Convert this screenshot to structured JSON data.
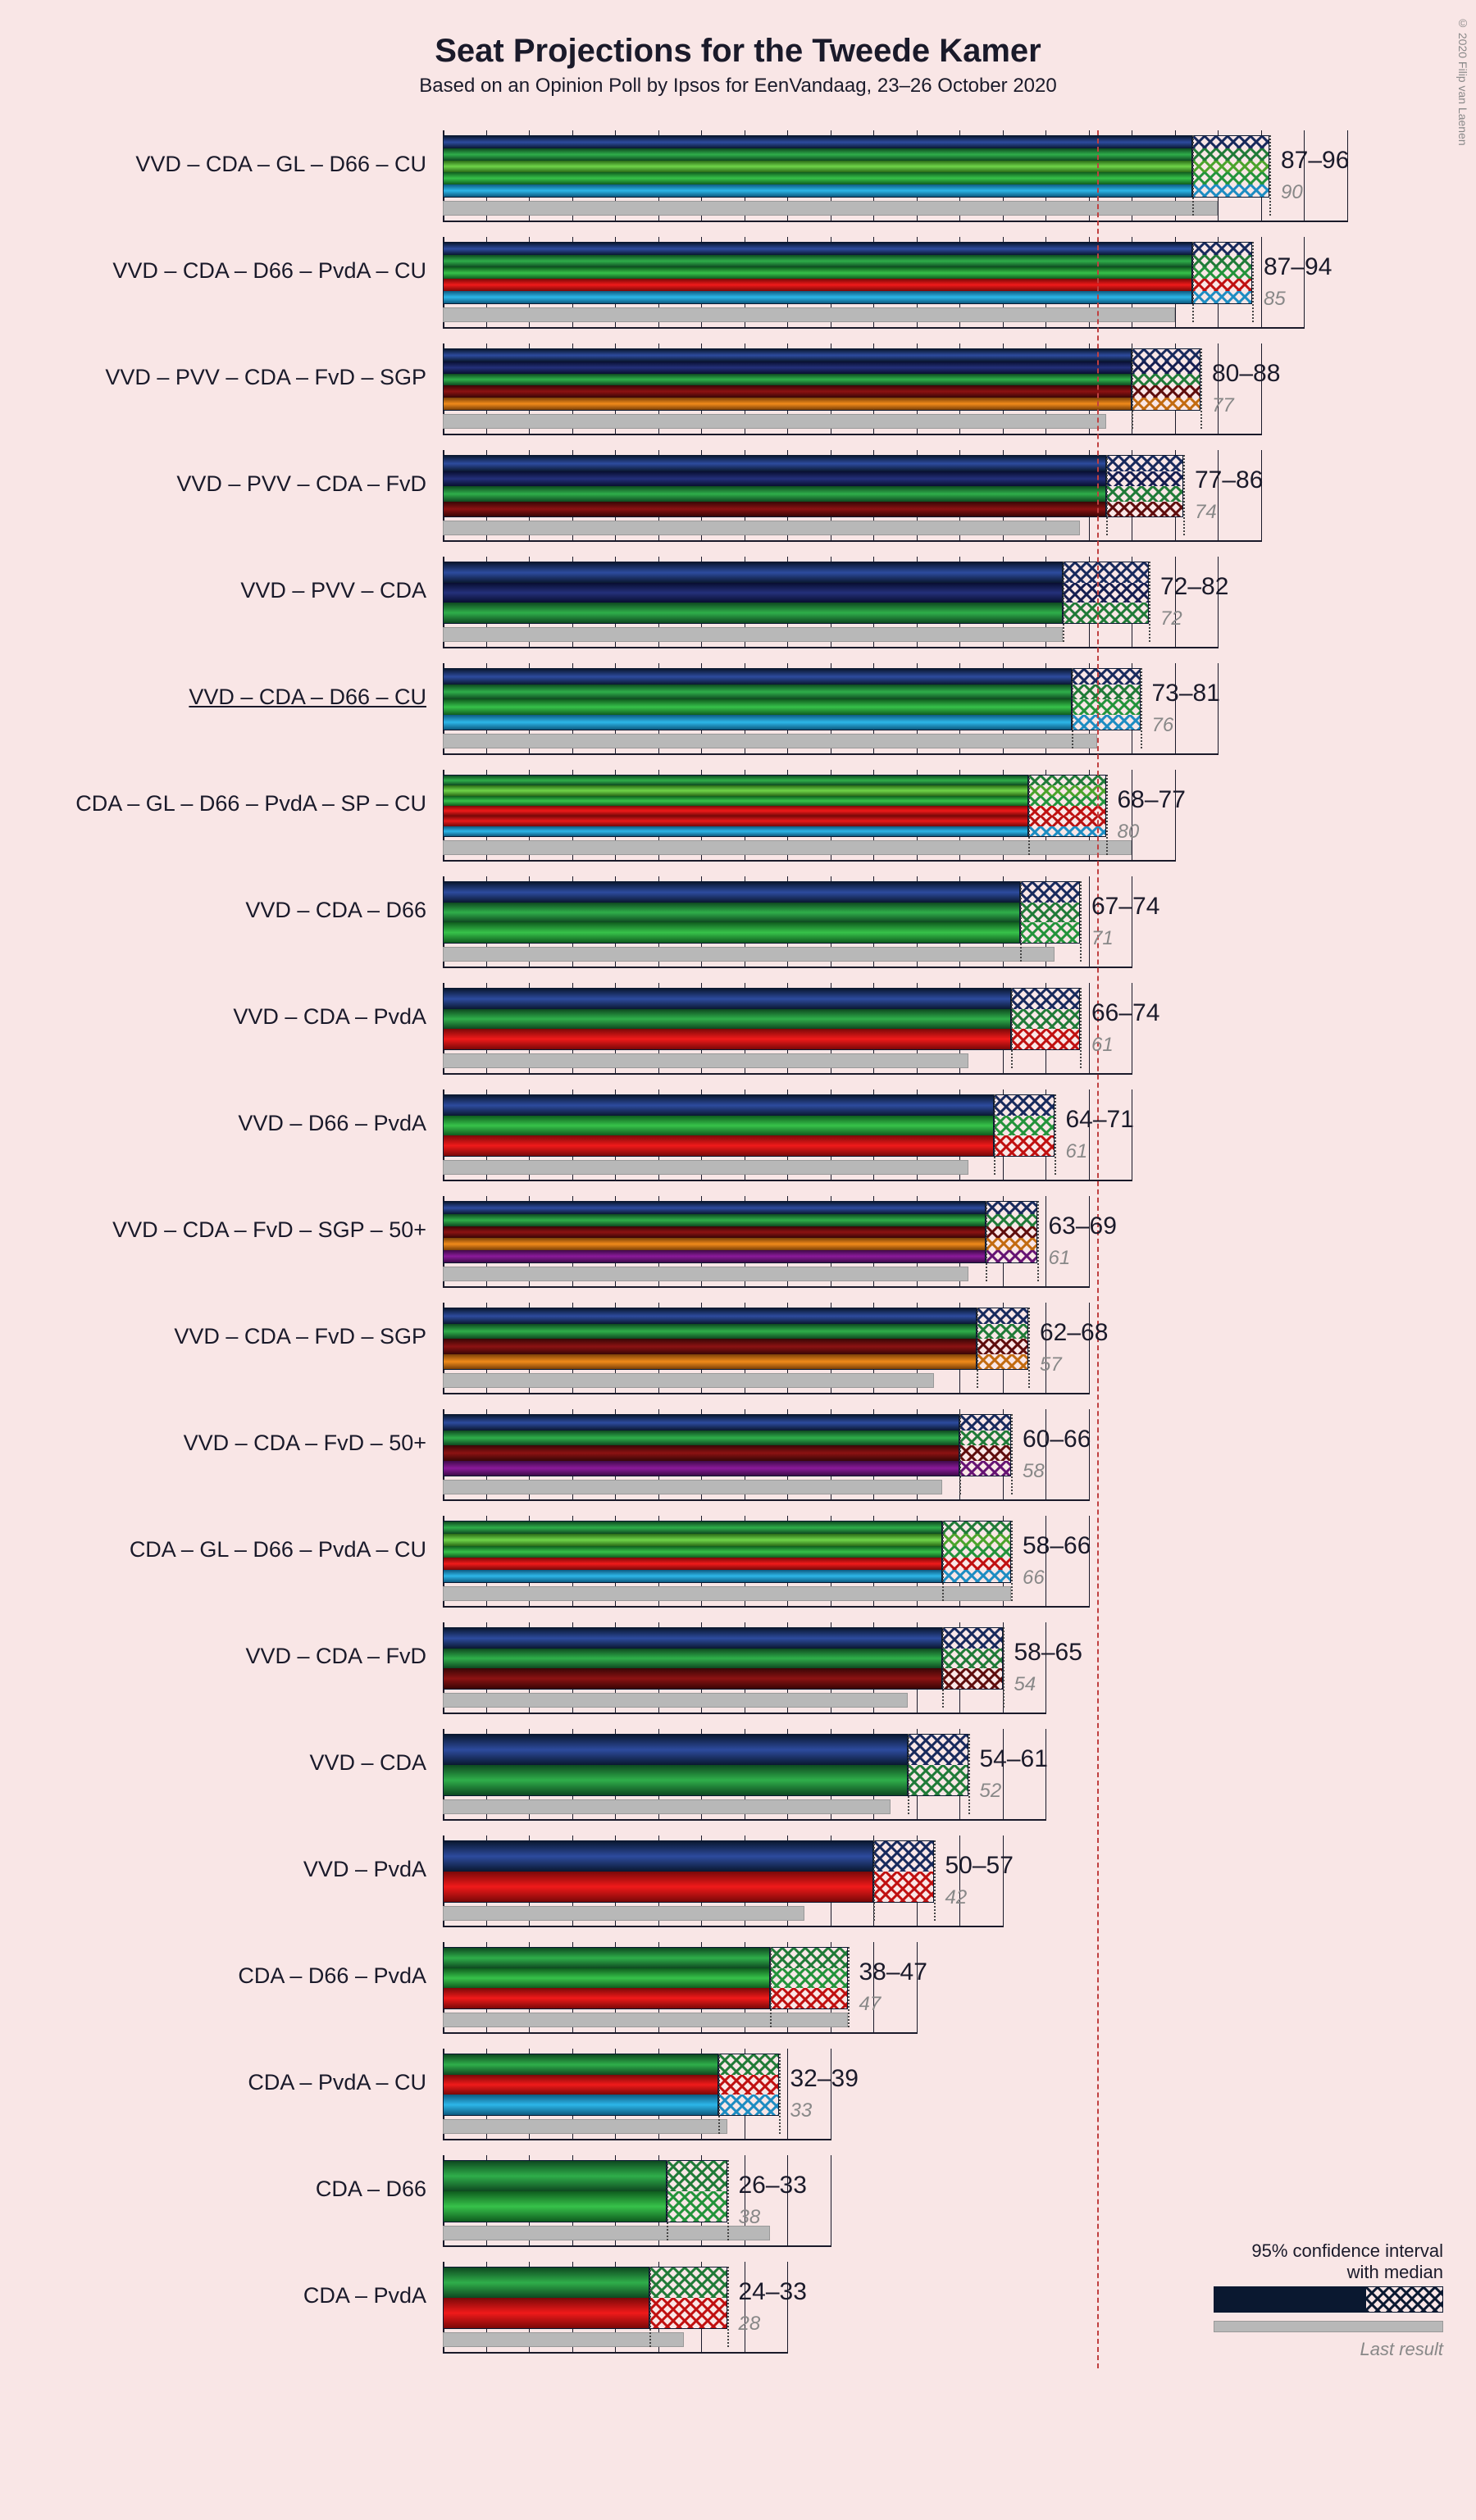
{
  "title": "Seat Projections for the Tweede Kamer",
  "subtitle": "Based on an Opinion Poll by Ipsos for EenVandaag, 23–26 October 2020",
  "credit": "© 2020 Filip van Laenen",
  "chart": {
    "majority": 76,
    "seat_scale": 10.5,
    "grid_step": 5,
    "grid_max": 100,
    "party_colors": {
      "VVD": {
        "light": "#2d4b9e",
        "mid": "#17295c",
        "dark": "#0a1830"
      },
      "CDA": {
        "light": "#2fae4a",
        "mid": "#1f7a37",
        "dark": "#0e4820"
      },
      "GL": {
        "light": "#6fd449",
        "mid": "#4aa32b",
        "dark": "#2a6a16"
      },
      "D66": {
        "light": "#37c24a",
        "mid": "#22933a",
        "dark": "#0f5c1e"
      },
      "CU": {
        "light": "#2db6e8",
        "mid": "#1c8cc2",
        "dark": "#0d5a80"
      },
      "PvdA": {
        "light": "#f01a1a",
        "mid": "#c00f0f",
        "dark": "#7a0808"
      },
      "PVV": {
        "light": "#24307a",
        "mid": "#141d50",
        "dark": "#080e30"
      },
      "FvD": {
        "light": "#8c1212",
        "mid": "#5e0c0c",
        "dark": "#380606"
      },
      "SGP": {
        "light": "#f08a1a",
        "mid": "#c26a0f",
        "dark": "#7a4008"
      },
      "SP": {
        "light": "#e81a1a",
        "mid": "#b81010",
        "dark": "#740808"
      },
      "50+": {
        "light": "#8a1a9a",
        "mid": "#651272",
        "dark": "#3e0a48"
      }
    },
    "rows": [
      {
        "label": "VVD – CDA – GL – D66 – CU",
        "parties": [
          "VVD",
          "CDA",
          "GL",
          "D66",
          "CU"
        ],
        "low": 87,
        "high": 96,
        "last": 90
      },
      {
        "label": "VVD – CDA – D66 – PvdA – CU",
        "parties": [
          "VVD",
          "CDA",
          "D66",
          "PvdA",
          "CU"
        ],
        "low": 87,
        "high": 94,
        "last": 85
      },
      {
        "label": "VVD – PVV – CDA – FvD – SGP",
        "parties": [
          "VVD",
          "PVV",
          "CDA",
          "FvD",
          "SGP"
        ],
        "low": 80,
        "high": 88,
        "last": 77
      },
      {
        "label": "VVD – PVV – CDA – FvD",
        "parties": [
          "VVD",
          "PVV",
          "CDA",
          "FvD"
        ],
        "low": 77,
        "high": 86,
        "last": 74
      },
      {
        "label": "VVD – PVV – CDA",
        "parties": [
          "VVD",
          "PVV",
          "CDA"
        ],
        "low": 72,
        "high": 82,
        "last": 72
      },
      {
        "label": "VVD – CDA – D66 – CU",
        "parties": [
          "VVD",
          "CDA",
          "D66",
          "CU"
        ],
        "low": 73,
        "high": 81,
        "last": 76,
        "underline": true
      },
      {
        "label": "CDA – GL – D66 – PvdA – SP – CU",
        "parties": [
          "CDA",
          "GL",
          "D66",
          "PvdA",
          "SP",
          "CU"
        ],
        "low": 68,
        "high": 77,
        "last": 80
      },
      {
        "label": "VVD – CDA – D66",
        "parties": [
          "VVD",
          "CDA",
          "D66"
        ],
        "low": 67,
        "high": 74,
        "last": 71
      },
      {
        "label": "VVD – CDA – PvdA",
        "parties": [
          "VVD",
          "CDA",
          "PvdA"
        ],
        "low": 66,
        "high": 74,
        "last": 61
      },
      {
        "label": "VVD – D66 – PvdA",
        "parties": [
          "VVD",
          "D66",
          "PvdA"
        ],
        "low": 64,
        "high": 71,
        "last": 61
      },
      {
        "label": "VVD – CDA – FvD – SGP – 50+",
        "parties": [
          "VVD",
          "CDA",
          "FvD",
          "SGP",
          "50+"
        ],
        "low": 63,
        "high": 69,
        "last": 61
      },
      {
        "label": "VVD – CDA – FvD – SGP",
        "parties": [
          "VVD",
          "CDA",
          "FvD",
          "SGP"
        ],
        "low": 62,
        "high": 68,
        "last": 57
      },
      {
        "label": "VVD – CDA – FvD – 50+",
        "parties": [
          "VVD",
          "CDA",
          "FvD",
          "50+"
        ],
        "low": 60,
        "high": 66,
        "last": 58
      },
      {
        "label": "CDA – GL – D66 – PvdA – CU",
        "parties": [
          "CDA",
          "GL",
          "D66",
          "PvdA",
          "CU"
        ],
        "low": 58,
        "high": 66,
        "last": 66
      },
      {
        "label": "VVD – CDA – FvD",
        "parties": [
          "VVD",
          "CDA",
          "FvD"
        ],
        "low": 58,
        "high": 65,
        "last": 54
      },
      {
        "label": "VVD – CDA",
        "parties": [
          "VVD",
          "CDA"
        ],
        "low": 54,
        "high": 61,
        "last": 52
      },
      {
        "label": "VVD – PvdA",
        "parties": [
          "VVD",
          "PvdA"
        ],
        "low": 50,
        "high": 57,
        "last": 42
      },
      {
        "label": "CDA – D66 – PvdA",
        "parties": [
          "CDA",
          "D66",
          "PvdA"
        ],
        "low": 38,
        "high": 47,
        "last": 47
      },
      {
        "label": "CDA – PvdA – CU",
        "parties": [
          "CDA",
          "PvdA",
          "CU"
        ],
        "low": 32,
        "high": 39,
        "last": 33
      },
      {
        "label": "CDA – D66",
        "parties": [
          "CDA",
          "D66"
        ],
        "low": 26,
        "high": 33,
        "last": 38
      },
      {
        "label": "CDA – PvdA",
        "parties": [
          "CDA",
          "PvdA"
        ],
        "low": 24,
        "high": 33,
        "last": 28
      }
    ],
    "legend": {
      "ci_text": "95% confidence interval\nwith median",
      "last_text": "Last result"
    }
  }
}
